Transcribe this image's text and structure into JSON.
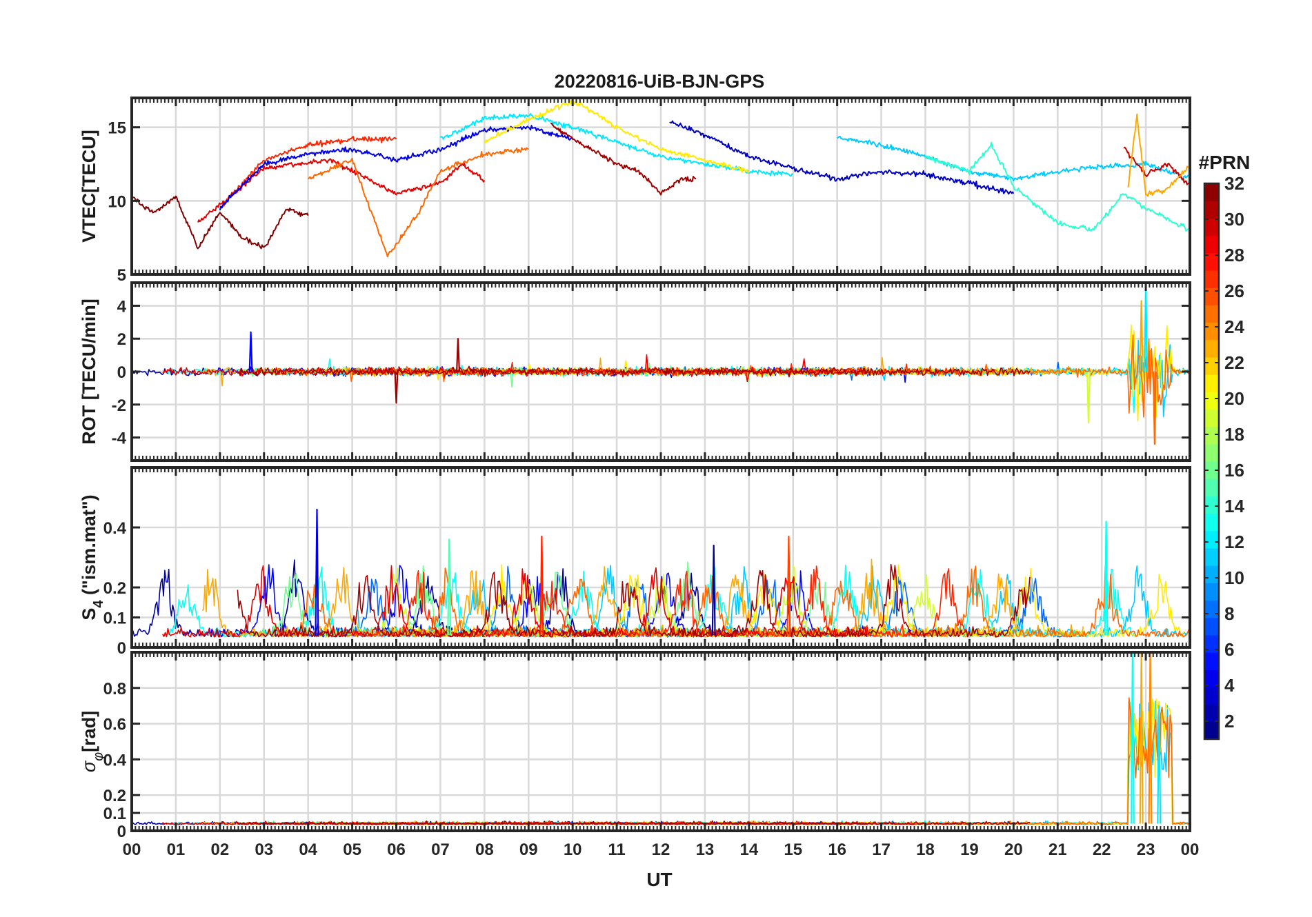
{
  "chart_data": {
    "type": "line",
    "title": "20220816-UiB-BJN-GPS",
    "xlabel": "UT",
    "x_ticks": [
      "00",
      "01",
      "02",
      "03",
      "04",
      "05",
      "06",
      "07",
      "08",
      "09",
      "10",
      "11",
      "12",
      "13",
      "14",
      "15",
      "16",
      "17",
      "18",
      "19",
      "20",
      "21",
      "22",
      "23",
      "00"
    ],
    "xlim": [
      0,
      24
    ],
    "colorbar": {
      "label": "#PRN",
      "range": [
        1,
        32
      ],
      "ticks": [
        "2",
        "4",
        "6",
        "8",
        "10",
        "12",
        "14",
        "16",
        "18",
        "20",
        "22",
        "24",
        "26",
        "28",
        "30",
        "32"
      ],
      "colormap": "jet"
    },
    "panels": [
      {
        "id": "vtec",
        "ylabel": "VTEC[TECU]",
        "ylim": [
          5,
          17
        ],
        "yticks": [
          5,
          10,
          15
        ],
        "ytick_labels": [
          "5",
          "10",
          "15"
        ],
        "description_series": [
          {
            "prn": 32,
            "x": [
              0,
              0.5,
              1,
              1.5,
              2,
              2.5,
              3,
              3.5,
              4
            ],
            "y": [
              10.2,
              9.2,
              10.3,
              6.8,
              9.2,
              7.5,
              6.8,
              9.4,
              9.0
            ]
          },
          {
            "prn": 29,
            "x": [
              1.5,
              3,
              4.5,
              6,
              7,
              7.5,
              8
            ],
            "y": [
              8.5,
              12.2,
              12.8,
              10.5,
              11.2,
              12.5,
              11.4
            ]
          },
          {
            "prn": 27,
            "x": [
              2,
              3,
              4,
              5,
              6
            ],
            "y": [
              9.5,
              12.8,
              13.8,
              14.2,
              14.2
            ]
          },
          {
            "prn": 25,
            "x": [
              4,
              5,
              5.8,
              6.5,
              7,
              8,
              9
            ],
            "y": [
              11.5,
              12.8,
              6.2,
              9.2,
              12.0,
              13.2,
              13.5
            ]
          },
          {
            "prn": 4,
            "x": [
              2,
              3,
              4,
              5,
              6,
              7,
              8,
              9,
              10
            ],
            "y": [
              9.5,
              12.5,
              13.2,
              13.5,
              12.8,
              13.5,
              14.8,
              15.0,
              14.2
            ]
          },
          {
            "prn": 12,
            "x": [
              7,
              8,
              9,
              10,
              11,
              12,
              13,
              14,
              15
            ],
            "y": [
              14.2,
              15.6,
              15.8,
              15.0,
              14.0,
              13.0,
              12.5,
              12.0,
              11.8
            ]
          },
          {
            "prn": 21,
            "x": [
              8,
              9,
              10,
              10.5,
              11,
              12,
              13,
              14
            ],
            "y": [
              14.0,
              15.5,
              16.8,
              16.0,
              15.0,
              13.5,
              12.8,
              12.0
            ]
          },
          {
            "prn": 31,
            "x": [
              9.5,
              10,
              11,
              11.5,
              12,
              12.5,
              12.8
            ],
            "y": [
              15.2,
              14.2,
              12.5,
              12.0,
              10.5,
              11.5,
              11.5
            ]
          },
          {
            "prn": 3,
            "x": [
              12.2,
              13,
              14,
              15,
              16,
              17,
              18,
              19,
              20
            ],
            "y": [
              15.4,
              14.5,
              13.0,
              12.2,
              11.5,
              12.0,
              11.8,
              11.2,
              10.5
            ]
          },
          {
            "prn": 11,
            "x": [
              16,
              17,
              18,
              19,
              20,
              21,
              22,
              23,
              24
            ],
            "y": [
              14.3,
              13.8,
              13.0,
              12.0,
              11.5,
              12.0,
              12.3,
              12.5,
              11.5
            ]
          },
          {
            "prn": 14,
            "x": [
              18,
              19,
              19.5,
              20,
              21,
              21.8,
              22.5,
              23,
              24
            ],
            "y": [
              13.0,
              12.0,
              13.8,
              11.0,
              8.5,
              8.0,
              10.5,
              9.5,
              8.0
            ]
          },
          {
            "prn": 30,
            "x": [
              22.5,
              23,
              23.5,
              24
            ],
            "y": [
              13.6,
              11.8,
              12.5,
              11.0
            ]
          },
          {
            "prn": 23,
            "x": [
              22.6,
              22.8,
              23,
              23.5,
              24
            ],
            "y": [
              11.0,
              15.8,
              10.5,
              10.8,
              12.5
            ]
          }
        ]
      },
      {
        "id": "rot",
        "ylabel": "ROT [TECU/min]",
        "ylim": [
          -5.4,
          5.4
        ],
        "yticks": [
          -4,
          -2,
          0,
          2,
          4
        ],
        "ytick_labels": [
          "-4",
          "-2",
          "0",
          "2",
          "4"
        ],
        "typical_range": [
          -0.5,
          0.5
        ],
        "notable_peaks": [
          {
            "x": 2.7,
            "y": 2.4,
            "prn": 5
          },
          {
            "x": 6.0,
            "y": -1.9,
            "prn": 31
          },
          {
            "x": 7.4,
            "y": 2.0,
            "prn": 31
          },
          {
            "x": 21.7,
            "y": -3.1,
            "prn": 19
          },
          {
            "x": 22.9,
            "y": 4.3,
            "prn": 23
          },
          {
            "x": 23.0,
            "y": 5.4,
            "prn": 12
          },
          {
            "x": 23.2,
            "y": -4.4,
            "prn": 25
          }
        ]
      },
      {
        "id": "s4",
        "ylabel": "S",
        "ylabel_sub": "4",
        "ylabel_suffix": " (\"ism.mat\")",
        "ylim": [
          0,
          0.6
        ],
        "yticks": [
          0,
          0.1,
          0.2,
          0.4
        ],
        "ytick_labels": [
          "0",
          "0.1",
          "0.2",
          "0.4"
        ],
        "notable_peaks": [
          {
            "x": 4.2,
            "y": 0.46,
            "prn": 4
          },
          {
            "x": 9.3,
            "y": 0.37,
            "prn": 27
          },
          {
            "x": 14.9,
            "y": 0.37,
            "prn": 26
          },
          {
            "x": 22.1,
            "y": 0.42,
            "prn": 13
          },
          {
            "x": 13.2,
            "y": 0.34,
            "prn": 2
          },
          {
            "x": 7.2,
            "y": 0.36,
            "prn": 15
          }
        ]
      },
      {
        "id": "sigphi",
        "ylabel": "σ",
        "ylabel_sub": "φ",
        "ylabel_suffix": "[rad]",
        "ylim": [
          0,
          1.0
        ],
        "yticks": [
          0,
          0.1,
          0.2,
          0.4,
          0.6,
          0.8
        ],
        "ytick_labels": [
          "0",
          "0.1",
          "0.2",
          "0.4",
          "0.6",
          "0.8"
        ],
        "typical_range": [
          0.02,
          0.06
        ],
        "notable_peaks": [
          {
            "x": 22.7,
            "y": 1.0,
            "prn": 13
          },
          {
            "x": 22.9,
            "y": 1.0,
            "prn": 23
          },
          {
            "x": 23.1,
            "y": 1.0,
            "prn": 24
          },
          {
            "x": 23.3,
            "y": 0.7,
            "prn": 12
          }
        ]
      }
    ]
  }
}
